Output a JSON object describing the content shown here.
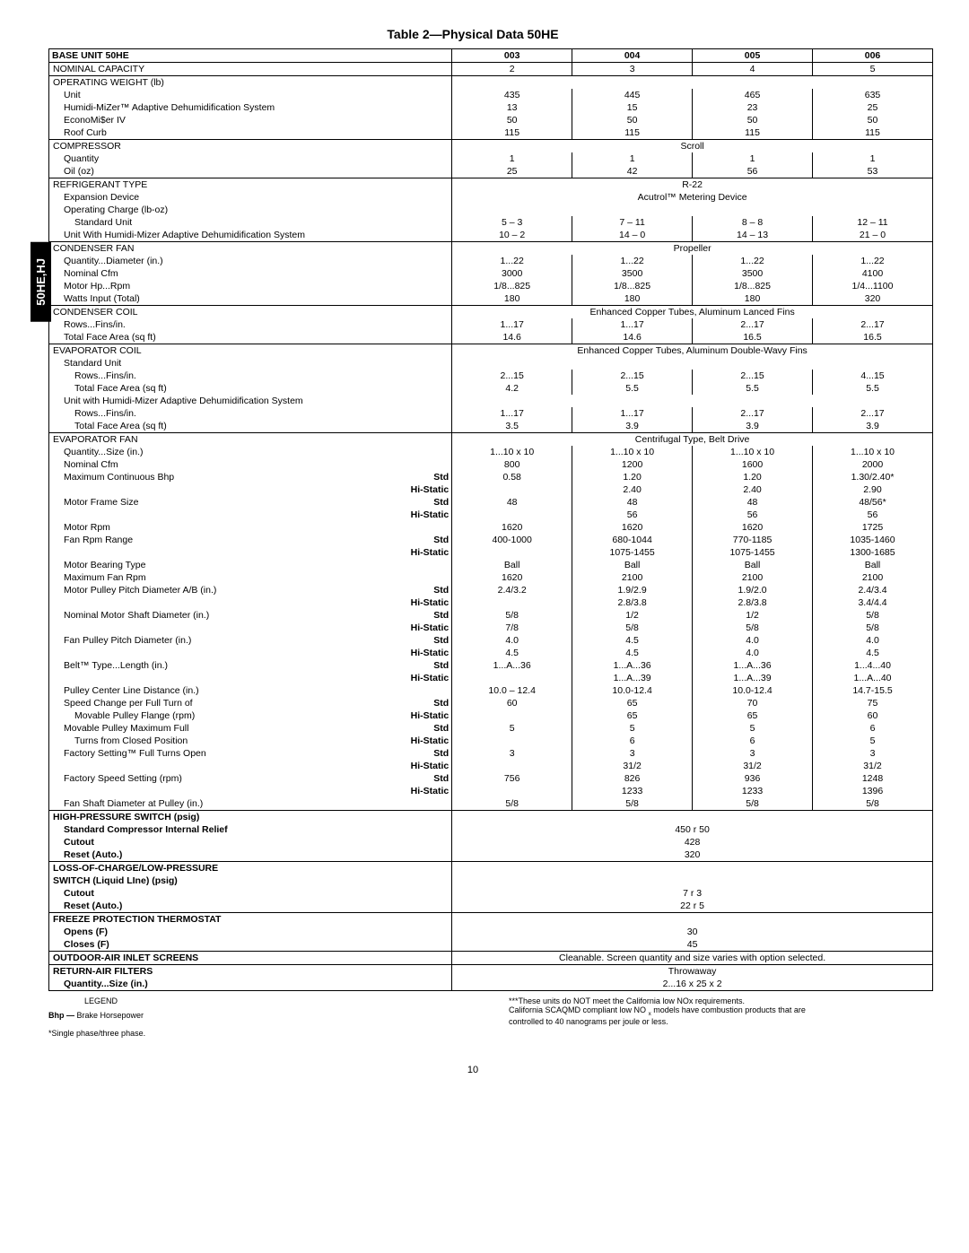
{
  "sideTab": "50HE,HJ",
  "title": "Table 2—Physical Data 50HE",
  "pageNum": "10",
  "header": {
    "label": "BASE UNIT 50HE",
    "cols": [
      "003",
      "004",
      "005",
      "006"
    ]
  },
  "rows": [
    {
      "t": "row",
      "label": "NOMINAL CAPACITY",
      "vals": [
        "2",
        "3",
        "4",
        "5"
      ],
      "cls": "section-hdr"
    },
    {
      "t": "hdr",
      "label": "OPERATING WEIGHT (lb)"
    },
    {
      "t": "row",
      "label": "Unit",
      "indent": 1,
      "vals": [
        "435",
        "445",
        "465",
        "635"
      ]
    },
    {
      "t": "row",
      "label": "Humidi-MiZer™ Adaptive Dehumidification System",
      "indent": 1,
      "vals": [
        "13",
        "15",
        "23",
        "25"
      ]
    },
    {
      "t": "row",
      "label": "EconoMi$er IV",
      "indent": 1,
      "vals": [
        "50",
        "50",
        "50",
        "50"
      ]
    },
    {
      "t": "row",
      "label": "Roof Curb",
      "indent": 1,
      "vals": [
        "115",
        "115",
        "115",
        "115"
      ],
      "last": true
    },
    {
      "t": "span-first",
      "label": "COMPRESSOR",
      "span": "Scroll"
    },
    {
      "t": "row",
      "label": "Quantity",
      "indent": 1,
      "vals": [
        "1",
        "1",
        "1",
        "1"
      ]
    },
    {
      "t": "row",
      "label": "Oil (oz)",
      "indent": 1,
      "vals": [
        "25",
        "42",
        "56",
        "53"
      ],
      "last": true
    },
    {
      "t": "span-row",
      "label": "REFRIGERANT TYPE",
      "span": "R-22"
    },
    {
      "t": "span-row",
      "label": "Expansion Device",
      "indent": 1,
      "span": "Acutrol™ Metering Device"
    },
    {
      "t": "mid",
      "label": "Operating Charge (lb-oz)",
      "indent": 1
    },
    {
      "t": "row",
      "label": "Standard Unit",
      "indent": 2,
      "vals": [
        "5 – 3",
        "7 – 11",
        "8 – 8",
        "12 – 11"
      ]
    },
    {
      "t": "row",
      "label": "Unit With Humidi-Mizer Adaptive Dehumidification System",
      "indent": 1,
      "vals": [
        "10 – 2",
        "14 – 0",
        "14 – 13",
        "21 – 0"
      ],
      "last": true
    },
    {
      "t": "span-first",
      "label": "CONDENSER FAN",
      "span": "Propeller"
    },
    {
      "t": "row",
      "label": "Quantity...Diameter (in.)",
      "indent": 1,
      "vals": [
        "1...22",
        "1...22",
        "1...22",
        "1...22"
      ]
    },
    {
      "t": "row",
      "label": "Nominal Cfm",
      "indent": 1,
      "vals": [
        "3000",
        "3500",
        "3500",
        "4100"
      ]
    },
    {
      "t": "row",
      "label": "Motor Hp...Rpm",
      "indent": 1,
      "vals": [
        "1/8...825",
        "1/8...825",
        "1/8...825",
        "1/4...1100"
      ]
    },
    {
      "t": "row",
      "label": "Watts Input (Total)",
      "indent": 1,
      "vals": [
        "180",
        "180",
        "180",
        "320"
      ],
      "last": true
    },
    {
      "t": "span-first",
      "label": "CONDENSER COIL",
      "span": "Enhanced Copper Tubes, Aluminum Lanced Fins"
    },
    {
      "t": "row",
      "label": "Rows...Fins/in.",
      "indent": 1,
      "vals": [
        "1...17",
        "1...17",
        "2...17",
        "2...17"
      ]
    },
    {
      "t": "row",
      "label": "Total Face Area (sq ft)",
      "indent": 1,
      "vals": [
        "14.6",
        "14.6",
        "16.5",
        "16.5"
      ],
      "last": true
    },
    {
      "t": "span-first",
      "label": "EVAPORATOR COIL",
      "span": "Enhanced Copper Tubes, Aluminum Double-Wavy Fins"
    },
    {
      "t": "mid",
      "label": "Standard Unit",
      "indent": 1
    },
    {
      "t": "row",
      "label": "Rows...Fins/in.",
      "indent": 2,
      "vals": [
        "2...15",
        "2...15",
        "2...15",
        "4...15"
      ]
    },
    {
      "t": "row",
      "label": "Total Face Area (sq ft)",
      "indent": 2,
      "vals": [
        "4.2",
        "5.5",
        "5.5",
        "5.5"
      ]
    },
    {
      "t": "mid",
      "label": "Unit with Humidi-Mizer Adaptive Dehumidification System",
      "indent": 1
    },
    {
      "t": "row",
      "label": "Rows...Fins/in.",
      "indent": 2,
      "vals": [
        "1...17",
        "1...17",
        "2...17",
        "2...17"
      ]
    },
    {
      "t": "row",
      "label": "Total Face Area (sq ft)",
      "indent": 2,
      "vals": [
        "3.5",
        "3.9",
        "3.9",
        "3.9"
      ],
      "last": true
    },
    {
      "t": "span-first",
      "label": "EVAPORATOR FAN",
      "span": "Centrifugal Type, Belt Drive"
    },
    {
      "t": "row",
      "label": "Quantity...Size (in.)",
      "indent": 1,
      "vals": [
        "1...10 x 10",
        "1...10 x 10",
        "1...10 x 10",
        "1...10 x 10"
      ]
    },
    {
      "t": "row",
      "label": "Nominal Cfm",
      "indent": 1,
      "vals": [
        "800",
        "1200",
        "1600",
        "2000"
      ]
    },
    {
      "t": "row2",
      "label": "Maximum Continuous Bhp",
      "indent": 1,
      "sub": "Std",
      "vals": [
        "0.58",
        "1.20",
        "1.20",
        "1.30/2.40*"
      ]
    },
    {
      "t": "row2",
      "label": "",
      "sub": "Hi-Static",
      "vals": [
        "",
        "2.40",
        "2.40",
        "2.90"
      ]
    },
    {
      "t": "row2",
      "label": "Motor Frame Size",
      "indent": 1,
      "sub": "Std",
      "vals": [
        "48",
        "48",
        "48",
        "48/56*"
      ]
    },
    {
      "t": "row2",
      "label": "",
      "sub": "Hi-Static",
      "vals": [
        "",
        "56",
        "56",
        "56"
      ]
    },
    {
      "t": "row",
      "label": "Motor Rpm",
      "indent": 1,
      "vals": [
        "1620",
        "1620",
        "1620",
        "1725"
      ]
    },
    {
      "t": "row2",
      "label": "Fan Rpm Range",
      "indent": 1,
      "sub": "Std",
      "vals": [
        "400-1000",
        "680-1044",
        "770-1185",
        "1035-1460"
      ]
    },
    {
      "t": "row2",
      "label": "",
      "sub": "Hi-Static",
      "vals": [
        "",
        "1075-1455",
        "1075-1455",
        "1300-1685"
      ]
    },
    {
      "t": "row",
      "label": "Motor Bearing Type",
      "indent": 1,
      "vals": [
        "Ball",
        "Ball",
        "Ball",
        "Ball"
      ]
    },
    {
      "t": "row",
      "label": "Maximum Fan Rpm",
      "indent": 1,
      "vals": [
        "1620",
        "2100",
        "2100",
        "2100"
      ]
    },
    {
      "t": "row2",
      "label": "Motor Pulley Pitch Diameter A/B (in.)",
      "indent": 1,
      "sub": "Std",
      "vals": [
        "2.4/3.2",
        "1.9/2.9",
        "1.9/2.0",
        "2.4/3.4"
      ]
    },
    {
      "t": "row2",
      "label": "",
      "sub": "Hi-Static",
      "vals": [
        "",
        "2.8/3.8",
        "2.8/3.8",
        "3.4/4.4"
      ]
    },
    {
      "t": "row2",
      "label": "Nominal Motor Shaft Diameter (in.)",
      "indent": 1,
      "sub": "Std",
      "vals": [
        "5/8",
        "1/2",
        "1/2",
        "5/8"
      ]
    },
    {
      "t": "row2",
      "label": "",
      "sub": "Hi-Static",
      "vals": [
        "7/8",
        "5/8",
        "5/8",
        "5/8"
      ]
    },
    {
      "t": "row2",
      "label": "Fan Pulley Pitch Diameter (in.)",
      "indent": 1,
      "sub": "Std",
      "vals": [
        "4.0",
        "4.5",
        "4.0",
        "4.0"
      ]
    },
    {
      "t": "row2",
      "label": "",
      "sub": "Hi-Static",
      "vals": [
        "4.5",
        "4.5",
        "4.0",
        "4.5"
      ]
    },
    {
      "t": "row2",
      "label": "Belt™ Type...Length (in.)",
      "indent": 1,
      "sub": "Std",
      "vals": [
        "1...A...36",
        "1...A...36",
        "1...A...36",
        "1...4...40"
      ]
    },
    {
      "t": "row2",
      "label": "",
      "sub": "Hi-Static",
      "vals": [
        "",
        "1...A...39",
        "1...A...39",
        "1...A...40"
      ]
    },
    {
      "t": "row",
      "label": "Pulley Center Line Distance (in.)",
      "indent": 1,
      "vals": [
        "10.0 – 12.4",
        "10.0-12.4",
        "10.0-12.4",
        "14.7-15.5"
      ]
    },
    {
      "t": "row2",
      "label": "Speed Change per Full Turn of",
      "indent": 1,
      "sub": "Std",
      "vals": [
        "60",
        "65",
        "70",
        "75"
      ]
    },
    {
      "t": "row2",
      "label": "Movable Pulley Flange (rpm)",
      "indent": 2,
      "sub": "Hi-Static",
      "vals": [
        "",
        "65",
        "65",
        "60"
      ]
    },
    {
      "t": "row2",
      "label": "Movable Pulley Maximum Full",
      "indent": 1,
      "sub": "Std",
      "vals": [
        "5",
        "5",
        "5",
        "6"
      ]
    },
    {
      "t": "row2",
      "label": "Turns from Closed Position",
      "indent": 2,
      "sub": "Hi-Static",
      "vals": [
        "",
        "6",
        "6",
        "5"
      ]
    },
    {
      "t": "row2",
      "label": "Factory Setting™ Full Turns Open",
      "indent": 1,
      "sub": "Std",
      "vals": [
        "3",
        "3",
        "3",
        "3"
      ]
    },
    {
      "t": "row2",
      "label": "",
      "sub": "Hi-Static",
      "vals": [
        "",
        "31/2",
        "31/2",
        "31/2"
      ]
    },
    {
      "t": "row2",
      "label": "Factory Speed Setting (rpm)",
      "indent": 1,
      "sub": "Std",
      "vals": [
        "756",
        "826",
        "936",
        "1248"
      ]
    },
    {
      "t": "row2",
      "label": "",
      "sub": "Hi-Static",
      "vals": [
        "",
        "1233",
        "1233",
        "1396"
      ]
    },
    {
      "t": "row",
      "label": "Fan Shaft Diameter at Pulley (in.)",
      "indent": 1,
      "vals": [
        "5/8",
        "5/8",
        "5/8",
        "5/8"
      ],
      "last": true
    },
    {
      "t": "hdr",
      "label": "HIGH-PRESSURE SWITCH (psig)",
      "bold": true
    },
    {
      "t": "span-row",
      "label": "Standard Compressor Internal Relief",
      "indent": 1,
      "span": "450 r 50",
      "bold": true
    },
    {
      "t": "span-row",
      "label": "Cutout",
      "indent": 1,
      "span": "428",
      "bold": true
    },
    {
      "t": "span-row",
      "label": "Reset (Auto.)",
      "indent": 1,
      "span": "320",
      "bold": true,
      "last": true
    },
    {
      "t": "hdr",
      "label": "LOSS-OF-CHARGE/LOW-PRESSURE",
      "bold": true
    },
    {
      "t": "mid",
      "label": "SWITCH (Liquid LIne) (psig)",
      "indent": 0,
      "bold": true
    },
    {
      "t": "span-row",
      "label": "Cutout",
      "indent": 1,
      "span": "7 r 3",
      "bold": true
    },
    {
      "t": "span-row",
      "label": "Reset (Auto.)",
      "indent": 1,
      "span": "22 r 5",
      "bold": true,
      "last": true
    },
    {
      "t": "hdr",
      "label": "FREEZE PROTECTION THERMOSTAT",
      "bold": true
    },
    {
      "t": "span-row",
      "label": "Opens (F)",
      "indent": 1,
      "span": "30",
      "bold": true
    },
    {
      "t": "span-row",
      "label": "Closes (F)",
      "indent": 1,
      "span": "45",
      "bold": true,
      "last": true
    },
    {
      "t": "span-row",
      "label": "OUTDOOR-AIR INLET SCREENS",
      "span": "Cleanable. Screen quantity and size varies with option selected.",
      "bold": true,
      "top": true,
      "last": true
    },
    {
      "t": "span-first",
      "label": "RETURN-AIR FILTERS",
      "span": "Throwaway",
      "bold": true,
      "top": true
    },
    {
      "t": "span-row",
      "label": "Quantity...Size (in.)",
      "indent": 1,
      "span": "2...16 x 25 x 2",
      "bold": true,
      "last": true
    }
  ],
  "legend": {
    "title": "LEGEND",
    "bhp": "Bhp —",
    "bhpText": "Brake Horsepower",
    "note1": "*Single phase/three phase.",
    "rightHead": "***These units do NOT meet the California low NOx requirements.",
    "right2": "California SCAQMD compliant low NO x models have combustion products that are",
    "right3": "controlled to 40 nanograms per joule or less.",
    "rightSub": "x"
  }
}
